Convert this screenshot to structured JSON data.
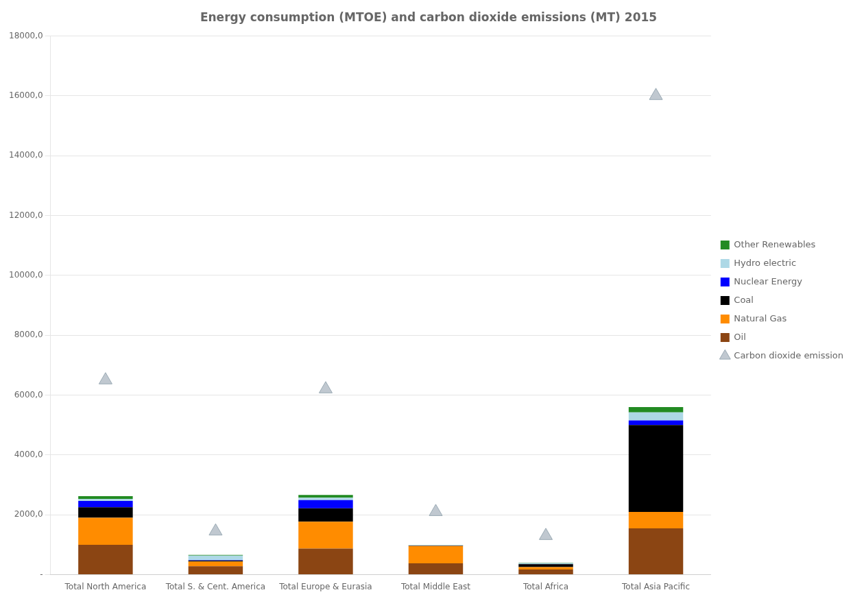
{
  "chart_data": {
    "type": "bar",
    "title": "Energy consumption (MTOE) and carbon dioxide emissions (MT) 2015",
    "categories": [
      "Total North America",
      "Total S. & Cent. America",
      "Total Europe & Eurasia",
      "Total Middle East",
      "Total Africa",
      "Total Asia Pacific"
    ],
    "stacked": true,
    "series": [
      {
        "name": "Oil",
        "color": "#8B4513",
        "values": [
          1000,
          280,
          870,
          380,
          175,
          1550
        ]
      },
      {
        "name": "Natural Gas",
        "color": "#FF8C00",
        "values": [
          900,
          160,
          900,
          580,
          80,
          550
        ]
      },
      {
        "name": "Coal",
        "color": "#000000",
        "values": [
          350,
          30,
          450,
          10,
          95,
          2900
        ]
      },
      {
        "name": "Nuclear Energy",
        "color": "#0000FF",
        "values": [
          215,
          15,
          270,
          5,
          5,
          155
        ]
      },
      {
        "name": "Hydro electric",
        "color": "#ADD8E6",
        "values": [
          70,
          155,
          80,
          10,
          28,
          270
        ]
      },
      {
        "name": "Other Renewables",
        "color": "#228B22",
        "values": [
          90,
          20,
          95,
          5,
          15,
          175
        ]
      },
      {
        "name": "Carbon dioxide emission",
        "type": "scatter",
        "marker": "triangle",
        "color": "#C0C8D0",
        "values": [
          6500,
          1450,
          6200,
          2100,
          1300,
          16000
        ]
      }
    ],
    "ylim": [
      0,
      18000
    ],
    "yticks": [
      {
        "value": 0,
        "label": "-"
      },
      {
        "value": 2000,
        "label": "2000,0"
      },
      {
        "value": 4000,
        "label": "4000,0"
      },
      {
        "value": 6000,
        "label": "6000,0"
      },
      {
        "value": 8000,
        "label": "8000,0"
      },
      {
        "value": 10000,
        "label": "10000,0"
      },
      {
        "value": 12000,
        "label": "12000,0"
      },
      {
        "value": 14000,
        "label": "14000,0"
      },
      {
        "value": 16000,
        "label": "16000,0"
      },
      {
        "value": 18000,
        "label": "18000,0"
      }
    ],
    "grid": true,
    "legend": "right"
  }
}
